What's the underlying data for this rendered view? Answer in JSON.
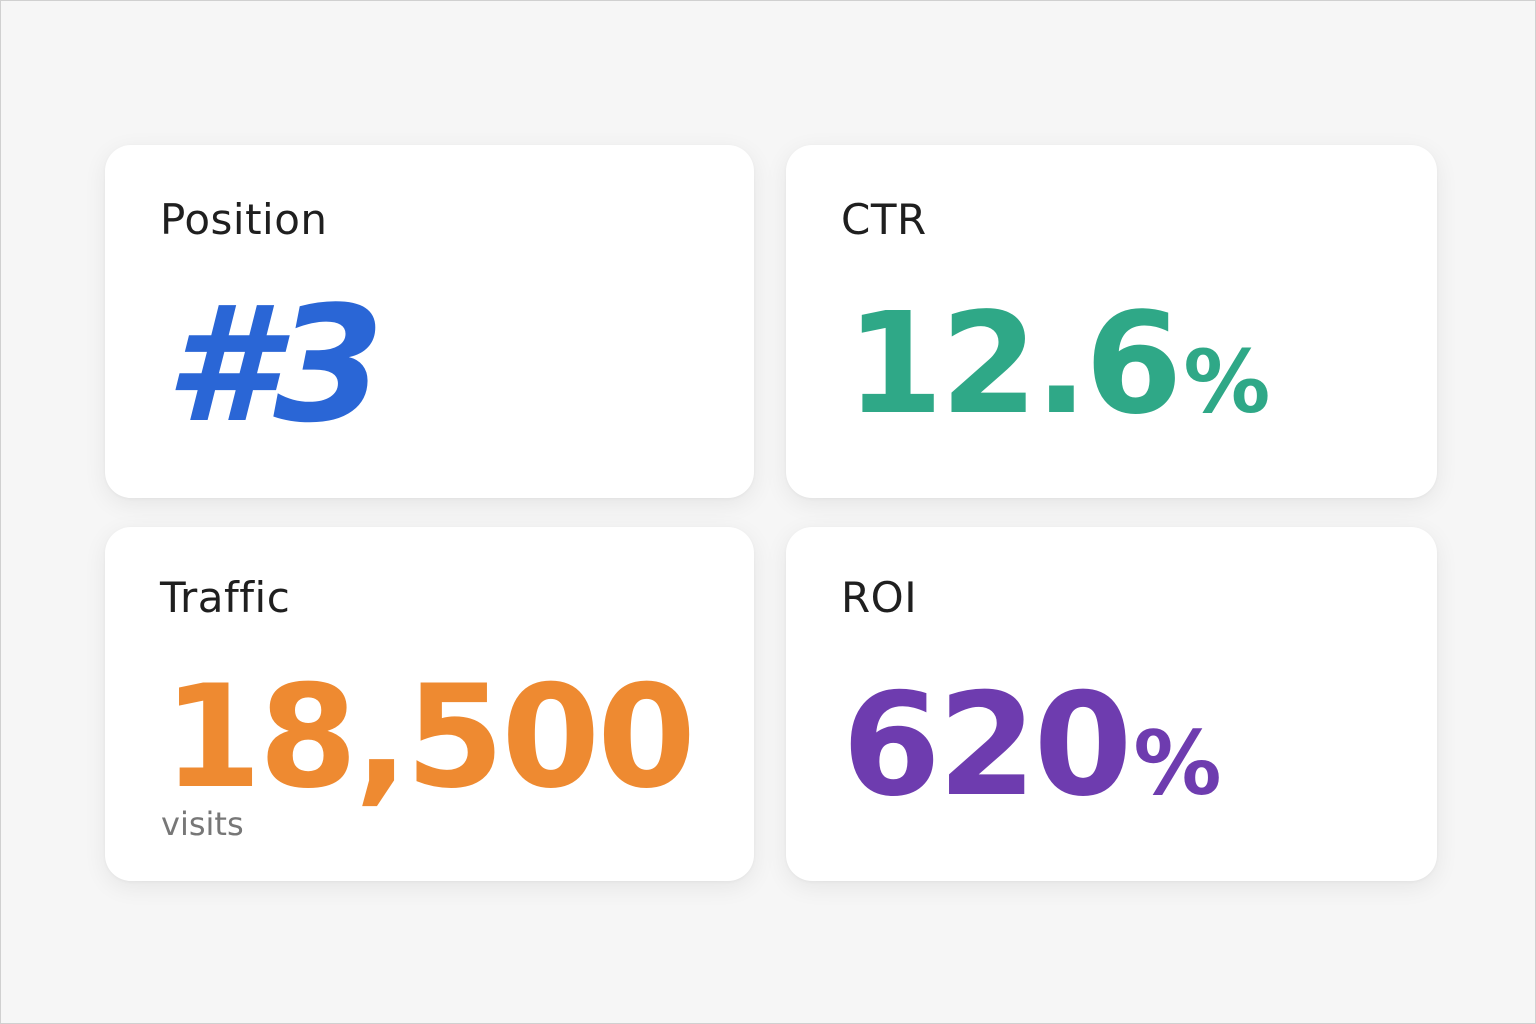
{
  "colors": {
    "background": "#f6f6f6",
    "card": "#ffffff",
    "position": "#2a66d6",
    "ctr": "#2fa887",
    "traffic": "#ee8a31",
    "roi": "#6e3caf",
    "label": "#1f1f1f",
    "sub": "#777777"
  },
  "cards": {
    "position": {
      "label": "Position",
      "value": "#3"
    },
    "ctr": {
      "label": "CTR",
      "value": "12.6",
      "unit": "%"
    },
    "traffic": {
      "label": "Traffic",
      "value": "18,500",
      "sub": "visits"
    },
    "roi": {
      "label": "ROI",
      "value": "620",
      "unit": "%"
    }
  }
}
